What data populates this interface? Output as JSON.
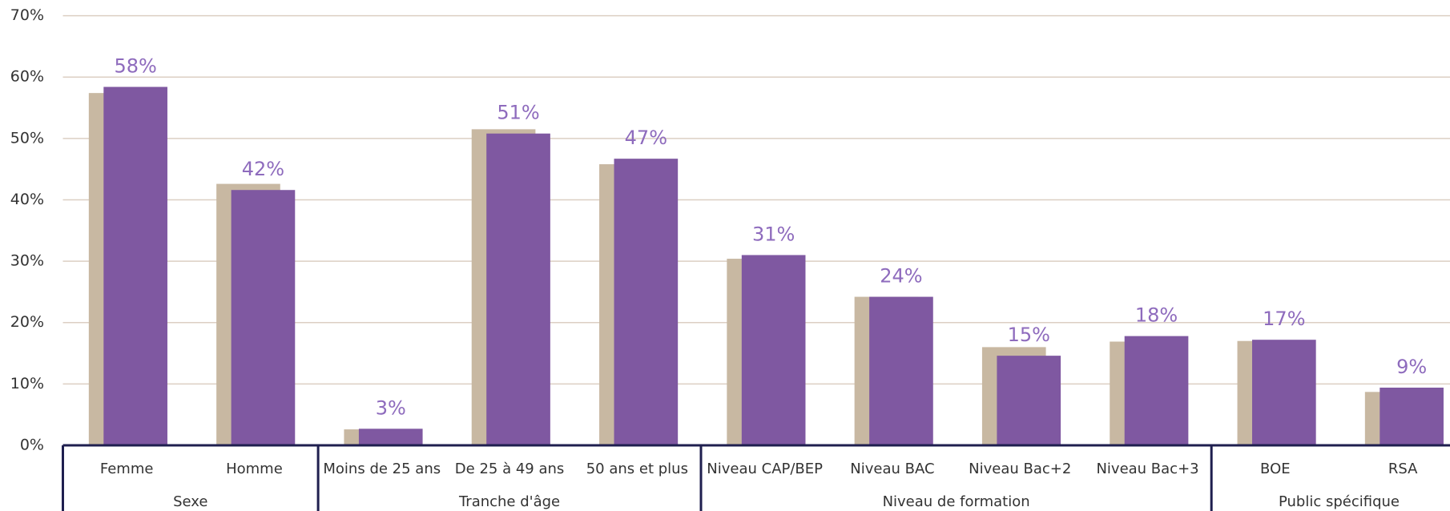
{
  "chart_data": {
    "type": "bar",
    "categories": [
      "Femme",
      "Homme",
      "Moins de 25 ans",
      "De 25 à 49 ans",
      "50 ans et plus",
      "Niveau CAP/BEP",
      "Niveau BAC",
      "Niveau Bac+2",
      "Niveau Bac+3",
      "BOE",
      "RSA"
    ],
    "groups": [
      {
        "name": "Sexe",
        "count": 2
      },
      {
        "name": "Tranche d'âge",
        "count": 3
      },
      {
        "name": "Niveau de formation",
        "count": 4
      },
      {
        "name": "Public spécifique",
        "count": 2
      }
    ],
    "series": [
      {
        "color": "#c8b8a2",
        "values": [
          57.4,
          42.6,
          2.6,
          51.5,
          45.8,
          30.4,
          24.2,
          16.0,
          16.9,
          17.0,
          8.7
        ]
      },
      {
        "color": "#7f58a1",
        "values": [
          58.4,
          41.6,
          2.7,
          50.8,
          46.7,
          31.0,
          24.2,
          14.6,
          17.8,
          17.2,
          9.4
        ],
        "value_labels": [
          "58%",
          "42%",
          "3%",
          "51%",
          "47%",
          "31%",
          "24%",
          "15%",
          "18%",
          "17%",
          "9%"
        ]
      }
    ],
    "ylim": [
      0,
      70
    ],
    "yticks": [
      {
        "value": 0,
        "label": "0%"
      },
      {
        "value": 10,
        "label": "10%"
      },
      {
        "value": 20,
        "label": "20%"
      },
      {
        "value": 30,
        "label": "30%"
      },
      {
        "value": 40,
        "label": "40%"
      },
      {
        "value": 50,
        "label": "50%"
      },
      {
        "value": 60,
        "label": "60%"
      },
      {
        "value": 70,
        "label": "70%"
      }
    ],
    "grid": true
  }
}
